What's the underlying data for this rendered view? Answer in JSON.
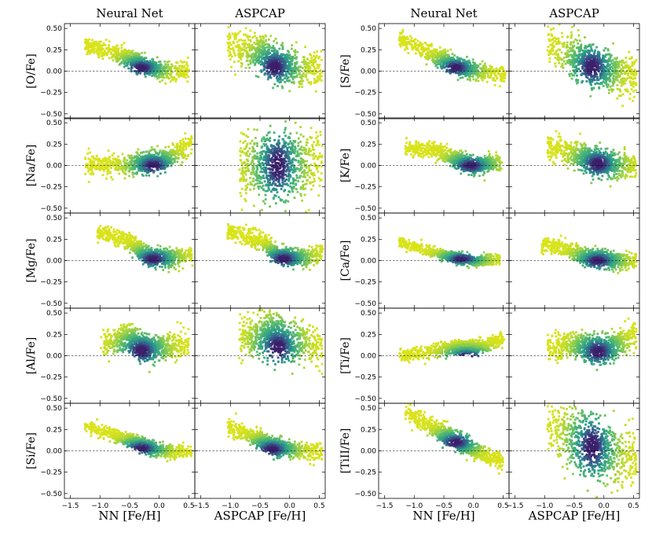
{
  "colors": {
    "low_density": "#d9e31a",
    "mid_density": "#2a9d8a",
    "high_density": "#3b1f6b",
    "zero_line": "#000000"
  },
  "chart_data": {
    "type": "scatter",
    "title": "",
    "description_type": "2D density scatter grid",
    "columns": [
      {
        "title": "Neural Net",
        "xlabel": "NN [Fe/H]"
      },
      {
        "title": "ASPCAP",
        "xlabel": "ASPCAP [Fe/H]"
      },
      {
        "title": "Neural Net",
        "xlabel": "NN [Fe/H]"
      },
      {
        "title": "ASPCAP",
        "xlabel": "ASPCAP [Fe/H]"
      }
    ],
    "xlim": [
      -1.6,
      0.6
    ],
    "ylim": [
      -0.52,
      0.52
    ],
    "xticks": [
      -1.5,
      -1.0,
      -0.5,
      0.0,
      0.5
    ],
    "xtick_labels": [
      "−1.5",
      "−1.0",
      "−0.5",
      "0.0",
      "0.5"
    ],
    "yticks": [
      -0.5,
      -0.25,
      0.0,
      0.25,
      0.5
    ],
    "ytick_labels": [
      "−0.50",
      "−0.25",
      "0.00",
      "0.25",
      "0.50"
    ],
    "reference_line_y": 0.0,
    "left_block_rows": [
      "[O/Fe]",
      "[Na/Fe]",
      "[Mg/Fe]",
      "[Al/Fe]",
      "[Si/Fe]"
    ],
    "right_block_rows": [
      "[S/Fe]",
      "[K/Fe]",
      "[Ca/Fe]",
      "[Ti/Fe]",
      "[TiII/Fe]"
    ],
    "panels": [
      {
        "element": "[O/Fe]",
        "source": "Neural Net",
        "trend": [
          [
            -1.2,
            0.3
          ],
          [
            -0.6,
            0.18
          ],
          [
            -0.2,
            0.04
          ],
          [
            0.2,
            -0.01
          ],
          [
            0.45,
            0.0
          ]
        ],
        "core": [
          -0.3,
          0.04
        ],
        "spread": 0.05
      },
      {
        "element": "[O/Fe]",
        "source": "ASPCAP",
        "trend": [
          [
            -1.0,
            0.3
          ],
          [
            -0.5,
            0.2
          ],
          [
            -0.2,
            0.07
          ],
          [
            0.2,
            0.02
          ],
          [
            0.5,
            0.02
          ]
        ],
        "core": [
          -0.25,
          0.05
        ],
        "spread": 0.1
      },
      {
        "element": "[Na/Fe]",
        "source": "Neural Net",
        "trend": [
          [
            -1.2,
            0.0
          ],
          [
            -0.5,
            0.01
          ],
          [
            0.0,
            0.05
          ],
          [
            0.3,
            0.13
          ],
          [
            0.5,
            0.25
          ]
        ],
        "core": [
          -0.1,
          0.0
        ],
        "spread": 0.06
      },
      {
        "element": "[Na/Fe]",
        "source": "ASPCAP",
        "trend": [
          [
            -0.8,
            0.0
          ],
          [
            -0.4,
            0.0
          ],
          [
            0.0,
            0.0
          ],
          [
            0.3,
            0.05
          ],
          [
            0.5,
            0.1
          ]
        ],
        "core": [
          -0.2,
          0.0
        ],
        "spread": 0.2
      },
      {
        "element": "[Mg/Fe]",
        "source": "Neural Net",
        "trend": [
          [
            -1.0,
            0.32
          ],
          [
            -0.5,
            0.22
          ],
          [
            -0.2,
            0.05
          ],
          [
            0.2,
            0.03
          ],
          [
            0.5,
            0.07
          ]
        ],
        "core": [
          -0.1,
          0.02
        ],
        "spread": 0.05
      },
      {
        "element": "[Mg/Fe]",
        "source": "ASPCAP",
        "trend": [
          [
            -1.0,
            0.33
          ],
          [
            -0.5,
            0.25
          ],
          [
            -0.2,
            0.06
          ],
          [
            0.2,
            0.03
          ],
          [
            0.5,
            0.07
          ]
        ],
        "core": [
          -0.1,
          0.02
        ],
        "spread": 0.05
      },
      {
        "element": "[Al/Fe]",
        "source": "Neural Net",
        "trend": [
          [
            -0.9,
            0.15
          ],
          [
            -0.5,
            0.22
          ],
          [
            -0.2,
            0.08
          ],
          [
            0.2,
            0.1
          ],
          [
            0.45,
            0.15
          ]
        ],
        "core": [
          -0.3,
          0.06
        ],
        "spread": 0.08
      },
      {
        "element": "[Al/Fe]",
        "source": "ASPCAP",
        "trend": [
          [
            -0.8,
            0.2
          ],
          [
            -0.4,
            0.25
          ],
          [
            0.0,
            0.15
          ],
          [
            0.3,
            0.15
          ],
          [
            0.5,
            0.1
          ]
        ],
        "core": [
          -0.2,
          0.1
        ],
        "spread": 0.12
      },
      {
        "element": "[Si/Fe]",
        "source": "Neural Net",
        "trend": [
          [
            -1.2,
            0.28
          ],
          [
            -0.6,
            0.15
          ],
          [
            -0.2,
            0.04
          ],
          [
            0.2,
            -0.01
          ],
          [
            0.5,
            -0.01
          ]
        ],
        "core": [
          -0.3,
          0.03
        ],
        "spread": 0.04
      },
      {
        "element": "[Si/Fe]",
        "source": "ASPCAP",
        "trend": [
          [
            -1.0,
            0.28
          ],
          [
            -0.6,
            0.16
          ],
          [
            -0.2,
            0.03
          ],
          [
            0.2,
            0.0
          ],
          [
            0.5,
            -0.01
          ]
        ],
        "core": [
          -0.3,
          0.02
        ],
        "spread": 0.05
      },
      {
        "element": "[S/Fe]",
        "source": "Neural Net",
        "trend": [
          [
            -1.2,
            0.36
          ],
          [
            -0.7,
            0.2
          ],
          [
            -0.3,
            0.06
          ],
          [
            0.1,
            0.0
          ],
          [
            0.5,
            -0.05
          ]
        ],
        "core": [
          -0.3,
          0.04
        ],
        "spread": 0.05
      },
      {
        "element": "[S/Fe]",
        "source": "ASPCAP",
        "trend": [
          [
            -0.9,
            0.3
          ],
          [
            -0.5,
            0.18
          ],
          [
            -0.2,
            0.06
          ],
          [
            0.2,
            0.0
          ],
          [
            0.5,
            -0.05
          ]
        ],
        "core": [
          -0.2,
          0.05
        ],
        "spread": 0.12
      },
      {
        "element": "[K/Fe]",
        "source": "Neural Net",
        "trend": [
          [
            -1.1,
            0.2
          ],
          [
            -0.6,
            0.18
          ],
          [
            -0.3,
            0.06
          ],
          [
            0.0,
            0.0
          ],
          [
            0.4,
            0.03
          ]
        ],
        "core": [
          -0.05,
          0.0
        ],
        "spread": 0.05
      },
      {
        "element": "[K/Fe]",
        "source": "ASPCAP",
        "trend": [
          [
            -0.9,
            0.22
          ],
          [
            -0.5,
            0.15
          ],
          [
            -0.2,
            0.05
          ],
          [
            0.2,
            0.0
          ],
          [
            0.5,
            0.0
          ]
        ],
        "core": [
          -0.1,
          0.02
        ],
        "spread": 0.08
      },
      {
        "element": "[Ca/Fe]",
        "source": "Neural Net",
        "trend": [
          [
            -1.2,
            0.2
          ],
          [
            -0.8,
            0.12
          ],
          [
            -0.4,
            0.05
          ],
          [
            0.0,
            0.0
          ],
          [
            0.4,
            0.01
          ]
        ],
        "core": [
          -0.2,
          0.02
        ],
        "spread": 0.03
      },
      {
        "element": "[Ca/Fe]",
        "source": "ASPCAP",
        "trend": [
          [
            -1.0,
            0.2
          ],
          [
            -0.6,
            0.12
          ],
          [
            -0.2,
            0.03
          ],
          [
            0.2,
            0.0
          ],
          [
            0.5,
            0.0
          ]
        ],
        "core": [
          -0.1,
          0.0
        ],
        "spread": 0.05
      },
      {
        "element": "[Ti/Fe]",
        "source": "Neural Net",
        "trend": [
          [
            -1.2,
            0.0
          ],
          [
            -0.7,
            0.06
          ],
          [
            -0.3,
            0.1
          ],
          [
            0.1,
            0.1
          ],
          [
            0.45,
            0.18
          ]
        ],
        "core": [
          -0.1,
          -0.01
        ],
        "spread": 0.04
      },
      {
        "element": "[Ti/Fe]",
        "source": "ASPCAP",
        "trend": [
          [
            -0.9,
            0.1
          ],
          [
            -0.5,
            0.12
          ],
          [
            -0.1,
            0.08
          ],
          [
            0.2,
            0.12
          ],
          [
            0.5,
            0.25
          ]
        ],
        "core": [
          -0.1,
          0.05
        ],
        "spread": 0.08
      },
      {
        "element": "[TiII/Fe]",
        "source": "Neural Net",
        "trend": [
          [
            -1.1,
            0.45
          ],
          [
            -0.7,
            0.28
          ],
          [
            -0.3,
            0.12
          ],
          [
            0.1,
            -0.02
          ],
          [
            0.45,
            -0.12
          ]
        ],
        "core": [
          -0.3,
          0.1
        ],
        "spread": 0.05
      },
      {
        "element": "[TiII/Fe]",
        "source": "ASPCAP",
        "trend": [
          [
            -0.9,
            0.25
          ],
          [
            -0.5,
            0.15
          ],
          [
            -0.2,
            0.05
          ],
          [
            0.2,
            -0.05
          ],
          [
            0.5,
            -0.1
          ]
        ],
        "core": [
          -0.2,
          0.05
        ],
        "spread": 0.18
      }
    ]
  }
}
